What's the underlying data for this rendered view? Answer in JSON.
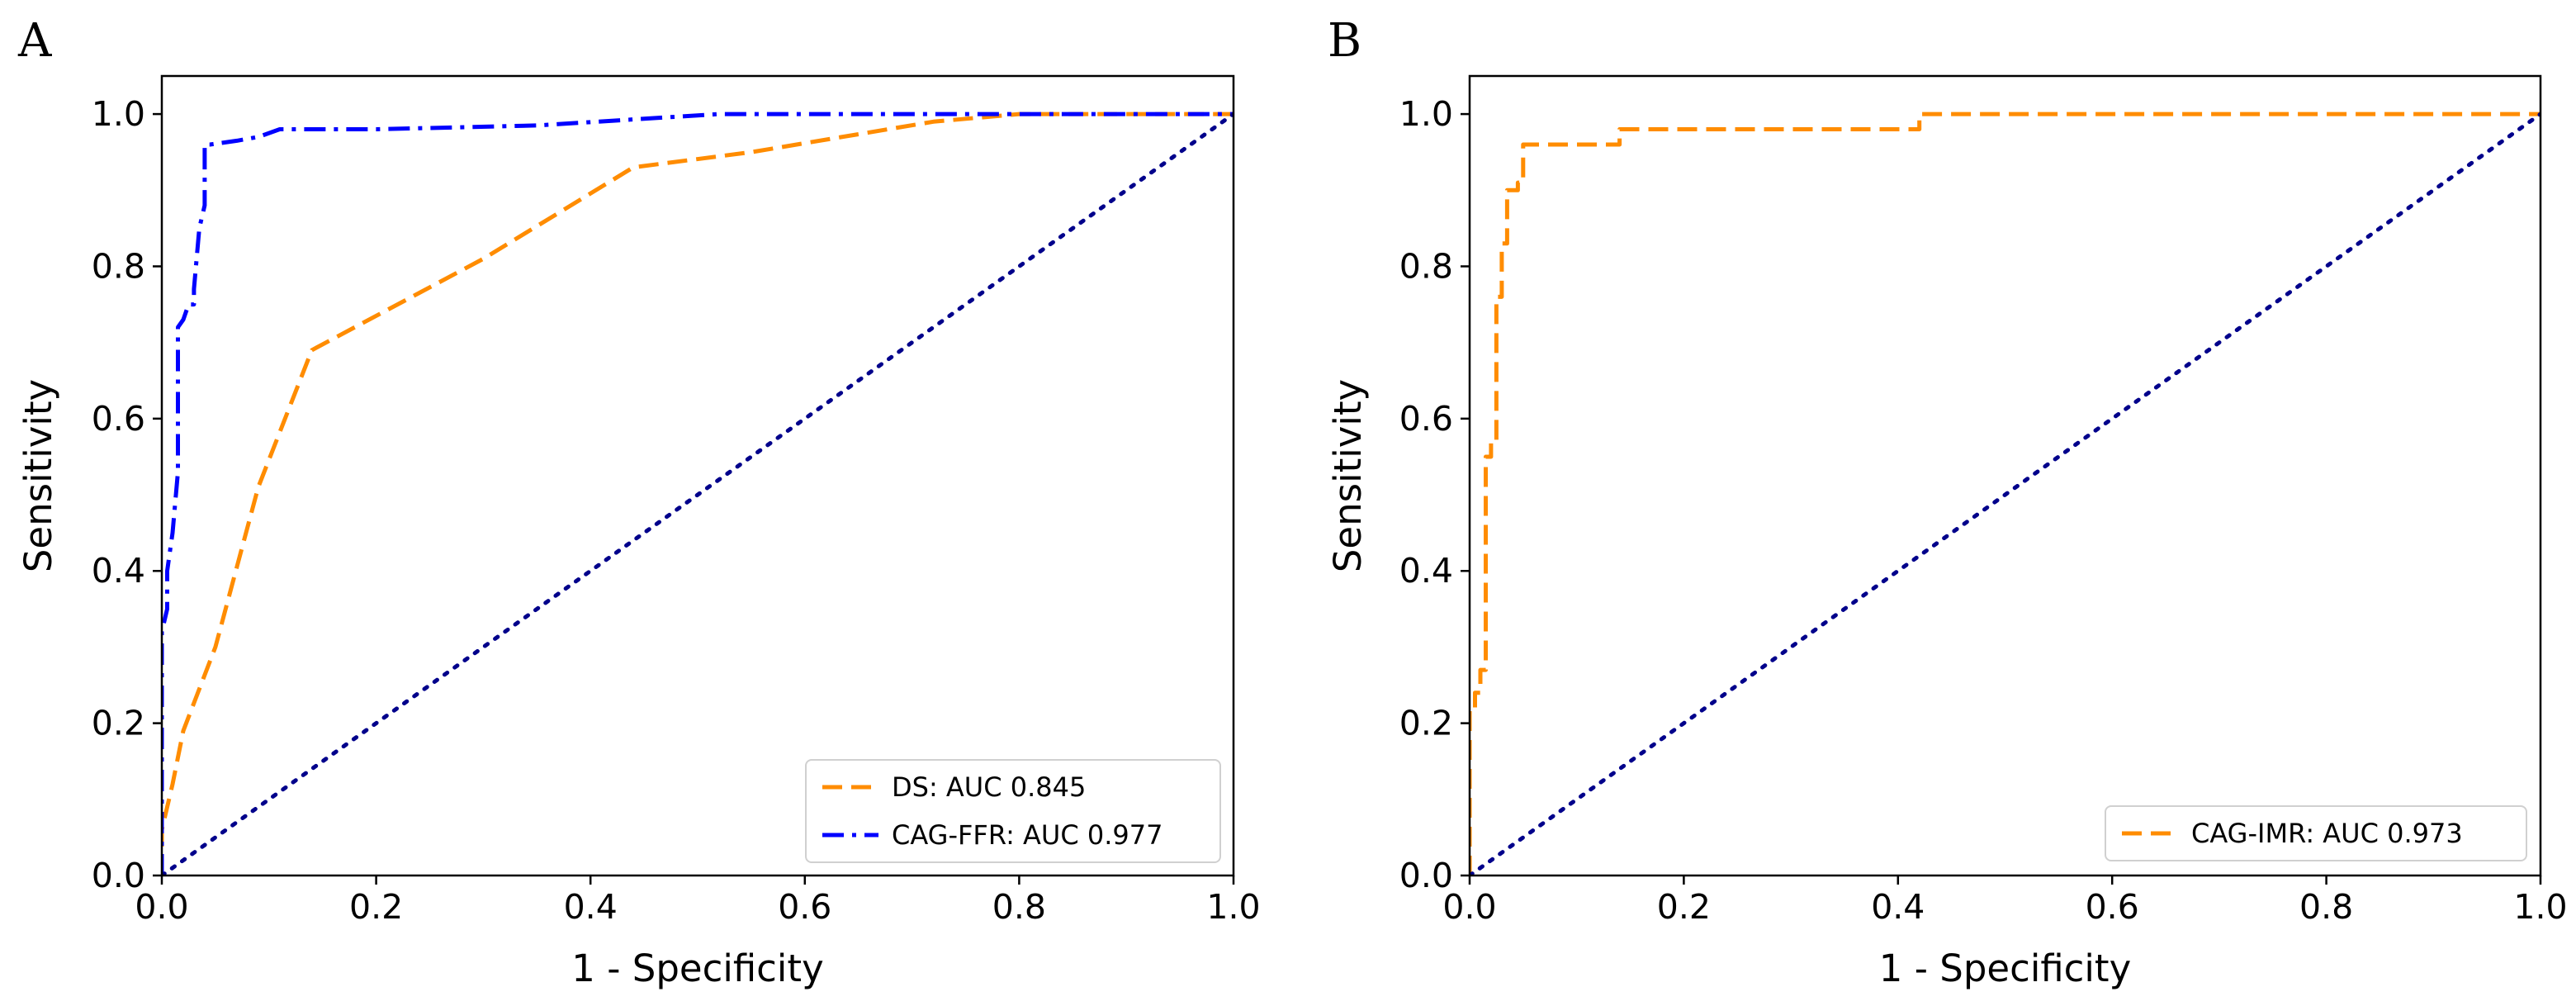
{
  "chart_data": [
    {
      "panel": "A",
      "type": "line",
      "title": "",
      "xlabel": "1 - Specificity",
      "ylabel": "Sensitivity",
      "xlim": [
        0.0,
        1.0
      ],
      "ylim": [
        0.0,
        1.05
      ],
      "xticks": [
        0.0,
        0.2,
        0.4,
        0.6,
        0.8,
        1.0
      ],
      "yticks": [
        0.0,
        0.2,
        0.4,
        0.6,
        0.8,
        1.0
      ],
      "xtick_labels": [
        "0.0",
        "0.2",
        "0.4",
        "0.6",
        "0.8",
        "1.0"
      ],
      "ytick_labels": [
        "0.0",
        "0.2",
        "0.4",
        "0.6",
        "0.8",
        "1.0"
      ],
      "grid": false,
      "legend_position": "bottom-right",
      "series": [
        {
          "name": "DS: AUC 0.845",
          "color": "#ff8c00",
          "style": "dashed",
          "x": [
            0.0,
            0.0,
            0.01,
            0.02,
            0.05,
            0.09,
            0.14,
            0.3,
            0.44,
            0.55,
            0.72,
            0.8,
            1.0
          ],
          "y": [
            0.0,
            0.06,
            0.12,
            0.19,
            0.3,
            0.51,
            0.69,
            0.81,
            0.93,
            0.95,
            0.99,
            1.0,
            1.0
          ]
        },
        {
          "name": "CAG-FFR: AUC 0.977",
          "color": "#0000ff",
          "style": "dashdot",
          "x": [
            0.0,
            0.0,
            0.005,
            0.005,
            0.01,
            0.015,
            0.015,
            0.02,
            0.025,
            0.03,
            0.03,
            0.035,
            0.04,
            0.04,
            0.045,
            0.07,
            0.09,
            0.11,
            0.2,
            0.35,
            0.52,
            0.7,
            1.0
          ],
          "y": [
            0.0,
            0.32,
            0.35,
            0.4,
            0.45,
            0.53,
            0.72,
            0.73,
            0.75,
            0.75,
            0.77,
            0.85,
            0.88,
            0.96,
            0.96,
            0.965,
            0.97,
            0.98,
            0.98,
            0.985,
            1.0,
            1.0,
            1.0
          ]
        },
        {
          "name": "chance",
          "color": "#00008b",
          "style": "dotted",
          "in_legend": false,
          "x": [
            0.0,
            1.0
          ],
          "y": [
            0.0,
            1.0
          ]
        }
      ]
    },
    {
      "panel": "B",
      "type": "line",
      "title": "",
      "xlabel": "1 - Specificity",
      "ylabel": "Sensitivity",
      "xlim": [
        0.0,
        1.0
      ],
      "ylim": [
        0.0,
        1.05
      ],
      "xticks": [
        0.0,
        0.2,
        0.4,
        0.6,
        0.8,
        1.0
      ],
      "yticks": [
        0.0,
        0.2,
        0.4,
        0.6,
        0.8,
        1.0
      ],
      "xtick_labels": [
        "0.0",
        "0.2",
        "0.4",
        "0.6",
        "0.8",
        "1.0"
      ],
      "ytick_labels": [
        "0.0",
        "0.2",
        "0.4",
        "0.6",
        "0.8",
        "1.0"
      ],
      "grid": false,
      "legend_position": "bottom-right",
      "series": [
        {
          "name": "CAG-IMR: AUC 0.973",
          "color": "#ff8c00",
          "style": "dashed",
          "x": [
            0.0,
            0.0,
            0.005,
            0.005,
            0.01,
            0.01,
            0.015,
            0.015,
            0.02,
            0.02,
            0.025,
            0.025,
            0.03,
            0.03,
            0.035,
            0.035,
            0.045,
            0.045,
            0.05,
            0.05,
            0.14,
            0.14,
            0.42,
            0.42,
            1.0
          ],
          "y": [
            0.0,
            0.22,
            0.22,
            0.24,
            0.24,
            0.27,
            0.27,
            0.55,
            0.55,
            0.57,
            0.57,
            0.76,
            0.76,
            0.83,
            0.83,
            0.9,
            0.9,
            0.91,
            0.91,
            0.96,
            0.96,
            0.98,
            0.98,
            1.0,
            1.0
          ]
        },
        {
          "name": "chance",
          "color": "#00008b",
          "style": "dotted",
          "in_legend": false,
          "x": [
            0.0,
            1.0
          ],
          "y": [
            0.0,
            1.0
          ]
        }
      ]
    }
  ]
}
